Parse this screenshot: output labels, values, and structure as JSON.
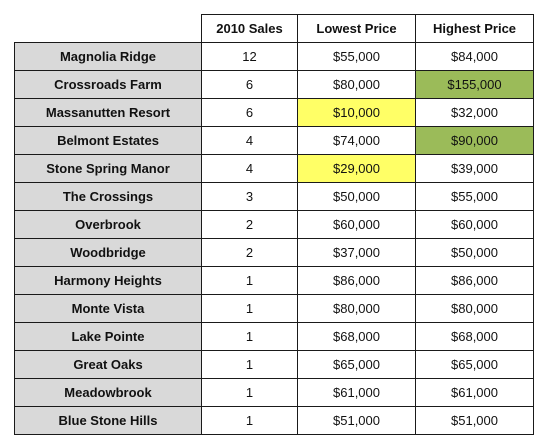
{
  "headers": {
    "sales": "2010 Sales",
    "lowest": "Lowest Price",
    "highest": "Highest Price"
  },
  "highlight_colors": {
    "yellow": "#ffff66",
    "green": "#9bbb59"
  },
  "rows": [
    {
      "name": "Magnolia Ridge",
      "sales": "12",
      "lowest": "$55,000",
      "highest": "$84,000",
      "lowest_hl": "",
      "highest_hl": ""
    },
    {
      "name": "Crossroads Farm",
      "sales": "6",
      "lowest": "$80,000",
      "highest": "$155,000",
      "lowest_hl": "",
      "highest_hl": "green"
    },
    {
      "name": "Massanutten Resort",
      "sales": "6",
      "lowest": "$10,000",
      "highest": "$32,000",
      "lowest_hl": "yellow",
      "highest_hl": ""
    },
    {
      "name": "Belmont Estates",
      "sales": "4",
      "lowest": "$74,000",
      "highest": "$90,000",
      "lowest_hl": "",
      "highest_hl": "green"
    },
    {
      "name": "Stone Spring Manor",
      "sales": "4",
      "lowest": "$29,000",
      "highest": "$39,000",
      "lowest_hl": "yellow",
      "highest_hl": ""
    },
    {
      "name": "The Crossings",
      "sales": "3",
      "lowest": "$50,000",
      "highest": "$55,000",
      "lowest_hl": "",
      "highest_hl": ""
    },
    {
      "name": "Overbrook",
      "sales": "2",
      "lowest": "$60,000",
      "highest": "$60,000",
      "lowest_hl": "",
      "highest_hl": ""
    },
    {
      "name": "Woodbridge",
      "sales": "2",
      "lowest": "$37,000",
      "highest": "$50,000",
      "lowest_hl": "",
      "highest_hl": ""
    },
    {
      "name": "Harmony Heights",
      "sales": "1",
      "lowest": "$86,000",
      "highest": "$86,000",
      "lowest_hl": "",
      "highest_hl": ""
    },
    {
      "name": "Monte Vista",
      "sales": "1",
      "lowest": "$80,000",
      "highest": "$80,000",
      "lowest_hl": "",
      "highest_hl": ""
    },
    {
      "name": "Lake Pointe",
      "sales": "1",
      "lowest": "$68,000",
      "highest": "$68,000",
      "lowest_hl": "",
      "highest_hl": ""
    },
    {
      "name": "Great Oaks",
      "sales": "1",
      "lowest": "$65,000",
      "highest": "$65,000",
      "lowest_hl": "",
      "highest_hl": ""
    },
    {
      "name": "Meadowbrook",
      "sales": "1",
      "lowest": "$61,000",
      "highest": "$61,000",
      "lowest_hl": "",
      "highest_hl": ""
    },
    {
      "name": "Blue Stone Hills",
      "sales": "1",
      "lowest": "$51,000",
      "highest": "$51,000",
      "lowest_hl": "",
      "highest_hl": ""
    }
  ]
}
